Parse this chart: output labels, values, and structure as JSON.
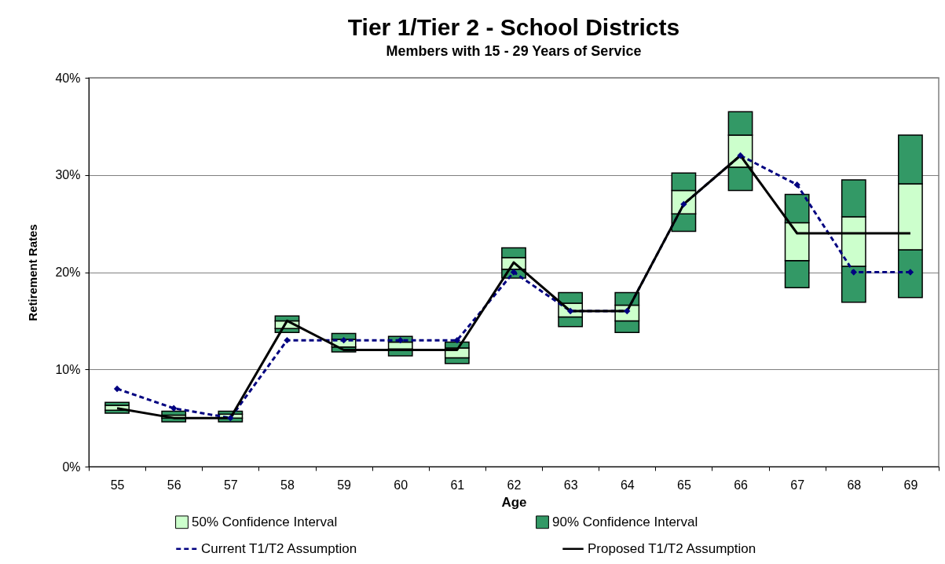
{
  "chart_data": {
    "type": "bar",
    "title": "Tier 1/Tier 2 - School Districts",
    "subtitle": "Members with 15 - 29 Years of Service",
    "xlabel": "Age",
    "ylabel": "Retirement Rates",
    "categories": [
      "55",
      "56",
      "57",
      "58",
      "59",
      "60",
      "61",
      "62",
      "63",
      "64",
      "65",
      "66",
      "67",
      "68",
      "69"
    ],
    "series": [
      {
        "color": "#339966",
        "base": [
          5.5,
          4.6,
          4.6,
          13.8,
          11.8,
          11.4,
          10.6,
          19.4,
          14.4,
          13.8,
          24.2,
          28.4,
          18.4,
          16.9,
          17.4
        ],
        "values": [
          0.3,
          0.4,
          0.4,
          0.4,
          0.5,
          0.7,
          0.6,
          0.9,
          1.0,
          1.2,
          1.8,
          2.4,
          2.8,
          3.7,
          4.9
        ]
      },
      {
        "name": "50% Confidence Interval",
        "color": "#ccffcc",
        "base": [
          5.8,
          5.0,
          5.0,
          14.2,
          12.3,
          12.1,
          11.2,
          20.3,
          15.4,
          15.0,
          26.0,
          30.8,
          21.2,
          20.6,
          22.3
        ],
        "values": [
          0.5,
          0.3,
          0.4,
          0.8,
          0.8,
          0.7,
          1.0,
          1.2,
          1.4,
          1.6,
          2.4,
          3.3,
          3.9,
          5.1,
          6.8
        ]
      },
      {
        "name": "90% Confidence Interval",
        "color": "#339966",
        "base": [
          6.3,
          5.3,
          5.4,
          15.0,
          13.1,
          12.8,
          12.2,
          21.5,
          16.8,
          16.6,
          28.4,
          34.1,
          25.1,
          25.7,
          29.1
        ],
        "values": [
          0.3,
          0.4,
          0.3,
          0.5,
          0.6,
          0.6,
          0.6,
          1.0,
          1.1,
          1.3,
          1.8,
          2.4,
          2.9,
          3.8,
          5.0
        ]
      },
      {
        "name": "Current  T1/T2 Assumption",
        "type": "line",
        "color": "#000080",
        "line_style": "dashed",
        "marker": "diamond",
        "values": [
          8,
          6,
          5,
          13,
          13,
          13,
          13,
          20,
          16,
          16,
          27,
          32,
          29,
          20,
          20
        ]
      },
      {
        "name": "Proposed T1/T2 Assumption",
        "type": "line",
        "color": "#000000",
        "line_style": "solid",
        "values": [
          6,
          5,
          5,
          15,
          12,
          12,
          12,
          21,
          16,
          16,
          27,
          32,
          24,
          24,
          24
        ]
      }
    ],
    "ylim": [
      0,
      40
    ],
    "yticks": [
      {
        "value": 0,
        "label": "0%"
      },
      {
        "value": 10,
        "label": "10%"
      },
      {
        "value": 20,
        "label": "20%"
      },
      {
        "value": 30,
        "label": "30%"
      },
      {
        "value": 40,
        "label": "40%"
      }
    ],
    "grid": "y",
    "legend": "bottom"
  }
}
